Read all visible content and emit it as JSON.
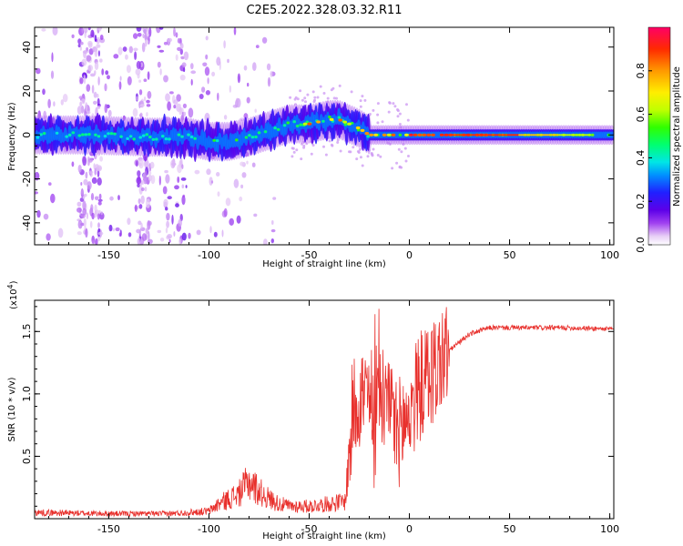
{
  "figure_title": "C2E5.2022.328.03.32.R11",
  "colors": {
    "snr_line": "#e8302c",
    "axis": "#000000",
    "background": "#ffffff"
  },
  "chart_data": [
    {
      "type": "heatmap",
      "name": "spectrogram",
      "title": "",
      "xlabel": "Height of straight line (km)",
      "ylabel": "Frequency (Hz)",
      "xlim": [
        -187,
        102
      ],
      "ylim": [
        -50,
        49
      ],
      "x_ticks": [
        -150,
        -100,
        -50,
        0,
        50,
        100
      ],
      "y_ticks": [
        -40,
        -20,
        0,
        20,
        40
      ],
      "ridge": {
        "description_points_x": [
          -187,
          -160,
          -130,
          -110,
          -100,
          -90,
          -80,
          -70,
          -60,
          -50,
          -40,
          -35,
          -30,
          -25,
          -20,
          -10,
          0,
          20,
          50,
          100
        ],
        "description_points_y": [
          0,
          0,
          -1,
          -1,
          -3,
          -3,
          -1,
          2,
          5,
          5,
          7,
          7,
          5,
          3,
          0,
          0,
          0,
          0,
          0,
          0
        ]
      },
      "colorbar": {
        "label": "Normalized spectral amplitude",
        "range": [
          0.0,
          1.0
        ],
        "ticks": [
          0.0,
          0.2,
          0.4,
          0.6,
          0.8
        ],
        "tick_labels": [
          "0.0",
          "0.2",
          "0.4",
          "0.6",
          "0.8"
        ]
      }
    },
    {
      "type": "line",
      "name": "snr",
      "title": "",
      "xlabel": "Height of straight line (km)",
      "ylabel": "SNR (10 * v/v)",
      "scale_label": "(x10",
      "scale_exponent": "4",
      "scale_close": ")",
      "xlim": [
        -187,
        102
      ],
      "ylim": [
        0,
        1.75
      ],
      "x_ticks": [
        -150,
        -100,
        -50,
        0,
        50,
        100
      ],
      "y_ticks": [
        0.5,
        1.0,
        1.5
      ],
      "y_tick_labels": [
        "0.5",
        "1.0",
        "1.5"
      ],
      "envelope_x": [
        -187,
        -150,
        -120,
        -100,
        -95,
        -85,
        -80,
        -75,
        -70,
        -65,
        -60,
        -50,
        -40,
        -32,
        -28,
        -25,
        -20,
        -15,
        -10,
        -5,
        0,
        5,
        10,
        15,
        20,
        30,
        40,
        50,
        60,
        80,
        100,
        102
      ],
      "envelope_y": [
        0.05,
        0.04,
        0.04,
        0.06,
        0.12,
        0.2,
        0.3,
        0.22,
        0.16,
        0.12,
        0.1,
        0.1,
        0.12,
        0.14,
        0.9,
        1.0,
        0.95,
        1.05,
        0.8,
        0.7,
        0.85,
        1.05,
        1.15,
        1.25,
        1.35,
        1.48,
        1.53,
        1.53,
        1.53,
        1.53,
        1.52,
        1.52
      ]
    }
  ]
}
